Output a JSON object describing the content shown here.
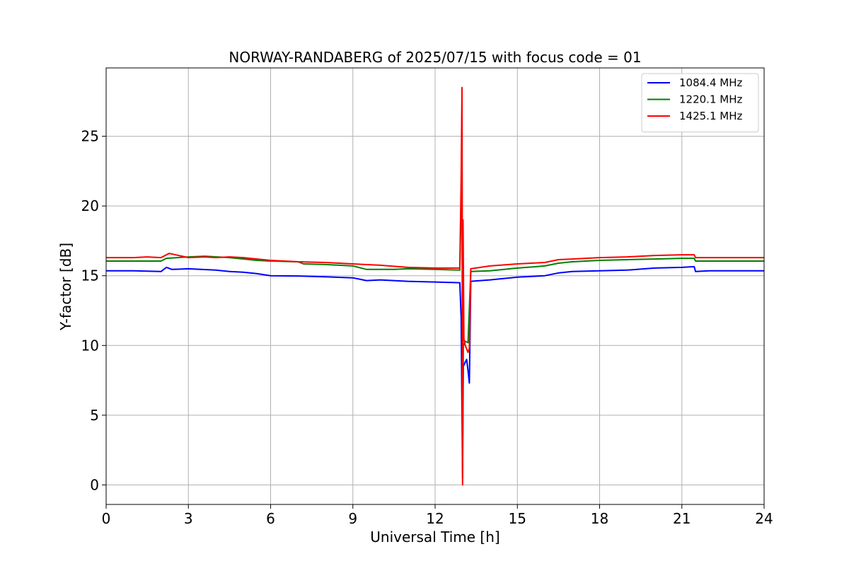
{
  "chart_data": {
    "type": "line",
    "title": "NORWAY-RANDABERG of 2025/07/15 with focus code = 01",
    "xlabel": "Universal Time [h]",
    "ylabel": "Y-factor [dB]",
    "xlim": [
      0,
      24
    ],
    "ylim": [
      -1.4,
      29.9
    ],
    "xticks": [
      0,
      3,
      6,
      9,
      12,
      15,
      18,
      21,
      24
    ],
    "yticks": [
      0,
      5,
      10,
      15,
      20,
      25
    ],
    "grid": true,
    "legend_position": "top-right",
    "series": [
      {
        "name": "1084.4 MHz",
        "color": "#0000ff",
        "points": [
          [
            0,
            15.35
          ],
          [
            1.0,
            15.35
          ],
          [
            2.0,
            15.3
          ],
          [
            2.2,
            15.6
          ],
          [
            2.4,
            15.45
          ],
          [
            3.0,
            15.5
          ],
          [
            4.0,
            15.4
          ],
          [
            4.5,
            15.3
          ],
          [
            5.0,
            15.25
          ],
          [
            5.5,
            15.15
          ],
          [
            6.0,
            15.0
          ],
          [
            7.0,
            14.98
          ],
          [
            8.0,
            14.92
          ],
          [
            9.0,
            14.85
          ],
          [
            9.5,
            14.65
          ],
          [
            10.0,
            14.7
          ],
          [
            11.0,
            14.6
          ],
          [
            12.0,
            14.55
          ],
          [
            12.9,
            14.5
          ],
          [
            12.95,
            12.0
          ],
          [
            13.0,
            0.5
          ],
          [
            13.03,
            8.5
          ],
          [
            13.1,
            8.8
          ],
          [
            13.15,
            9.0
          ],
          [
            13.2,
            8.2
          ],
          [
            13.25,
            7.3
          ],
          [
            13.3,
            14.6
          ],
          [
            14.0,
            14.7
          ],
          [
            15.0,
            14.9
          ],
          [
            16.0,
            15.0
          ],
          [
            16.5,
            15.2
          ],
          [
            17.0,
            15.3
          ],
          [
            18.0,
            15.35
          ],
          [
            19.0,
            15.4
          ],
          [
            20.0,
            15.55
          ],
          [
            21.0,
            15.6
          ],
          [
            21.45,
            15.65
          ],
          [
            21.5,
            15.3
          ],
          [
            22.0,
            15.35
          ],
          [
            24.0,
            15.35
          ]
        ]
      },
      {
        "name": "1220.1 MHz",
        "color": "#008000",
        "points": [
          [
            0,
            16.05
          ],
          [
            2.0,
            16.05
          ],
          [
            2.2,
            16.25
          ],
          [
            3.0,
            16.35
          ],
          [
            3.6,
            16.4
          ],
          [
            4.5,
            16.3
          ],
          [
            5.5,
            16.1
          ],
          [
            6.0,
            16.05
          ],
          [
            7.0,
            16.0
          ],
          [
            7.2,
            15.85
          ],
          [
            8.0,
            15.8
          ],
          [
            9.0,
            15.7
          ],
          [
            9.5,
            15.45
          ],
          [
            10.5,
            15.45
          ],
          [
            11.0,
            15.5
          ],
          [
            12.0,
            15.45
          ],
          [
            12.9,
            15.4
          ],
          [
            12.95,
            20.0
          ],
          [
            12.98,
            27.0
          ],
          [
            13.0,
            1.8
          ],
          [
            13.03,
            10.0
          ],
          [
            13.1,
            10.3
          ],
          [
            13.2,
            10.2
          ],
          [
            13.3,
            15.3
          ],
          [
            14.0,
            15.35
          ],
          [
            15.0,
            15.55
          ],
          [
            16.0,
            15.7
          ],
          [
            16.5,
            15.9
          ],
          [
            17.0,
            16.0
          ],
          [
            18.0,
            16.1
          ],
          [
            19.0,
            16.15
          ],
          [
            20.0,
            16.2
          ],
          [
            21.0,
            16.25
          ],
          [
            21.45,
            16.25
          ],
          [
            21.5,
            16.05
          ],
          [
            24.0,
            16.05
          ]
        ]
      },
      {
        "name": "1425.1 MHz",
        "color": "#ff0000",
        "points": [
          [
            0,
            16.3
          ],
          [
            1.0,
            16.3
          ],
          [
            1.5,
            16.35
          ],
          [
            2.0,
            16.3
          ],
          [
            2.3,
            16.6
          ],
          [
            3.0,
            16.3
          ],
          [
            3.6,
            16.35
          ],
          [
            4.0,
            16.3
          ],
          [
            4.5,
            16.35
          ],
          [
            5.0,
            16.3
          ],
          [
            5.5,
            16.2
          ],
          [
            6.0,
            16.1
          ],
          [
            7.0,
            16.0
          ],
          [
            8.0,
            15.95
          ],
          [
            9.0,
            15.85
          ],
          [
            10.0,
            15.75
          ],
          [
            11.0,
            15.6
          ],
          [
            12.0,
            15.55
          ],
          [
            12.9,
            15.55
          ],
          [
            12.95,
            22.0
          ],
          [
            12.98,
            28.5
          ],
          [
            13.0,
            0.0
          ],
          [
            13.02,
            19.0
          ],
          [
            13.05,
            10.5
          ],
          [
            13.1,
            10.0
          ],
          [
            13.2,
            9.5
          ],
          [
            13.25,
            9.8
          ],
          [
            13.3,
            15.5
          ],
          [
            14.0,
            15.7
          ],
          [
            15.0,
            15.85
          ],
          [
            16.0,
            15.95
          ],
          [
            16.5,
            16.15
          ],
          [
            17.0,
            16.2
          ],
          [
            18.0,
            16.3
          ],
          [
            19.0,
            16.35
          ],
          [
            20.0,
            16.45
          ],
          [
            21.0,
            16.5
          ],
          [
            21.45,
            16.5
          ],
          [
            21.5,
            16.3
          ],
          [
            24.0,
            16.3
          ]
        ]
      }
    ]
  }
}
